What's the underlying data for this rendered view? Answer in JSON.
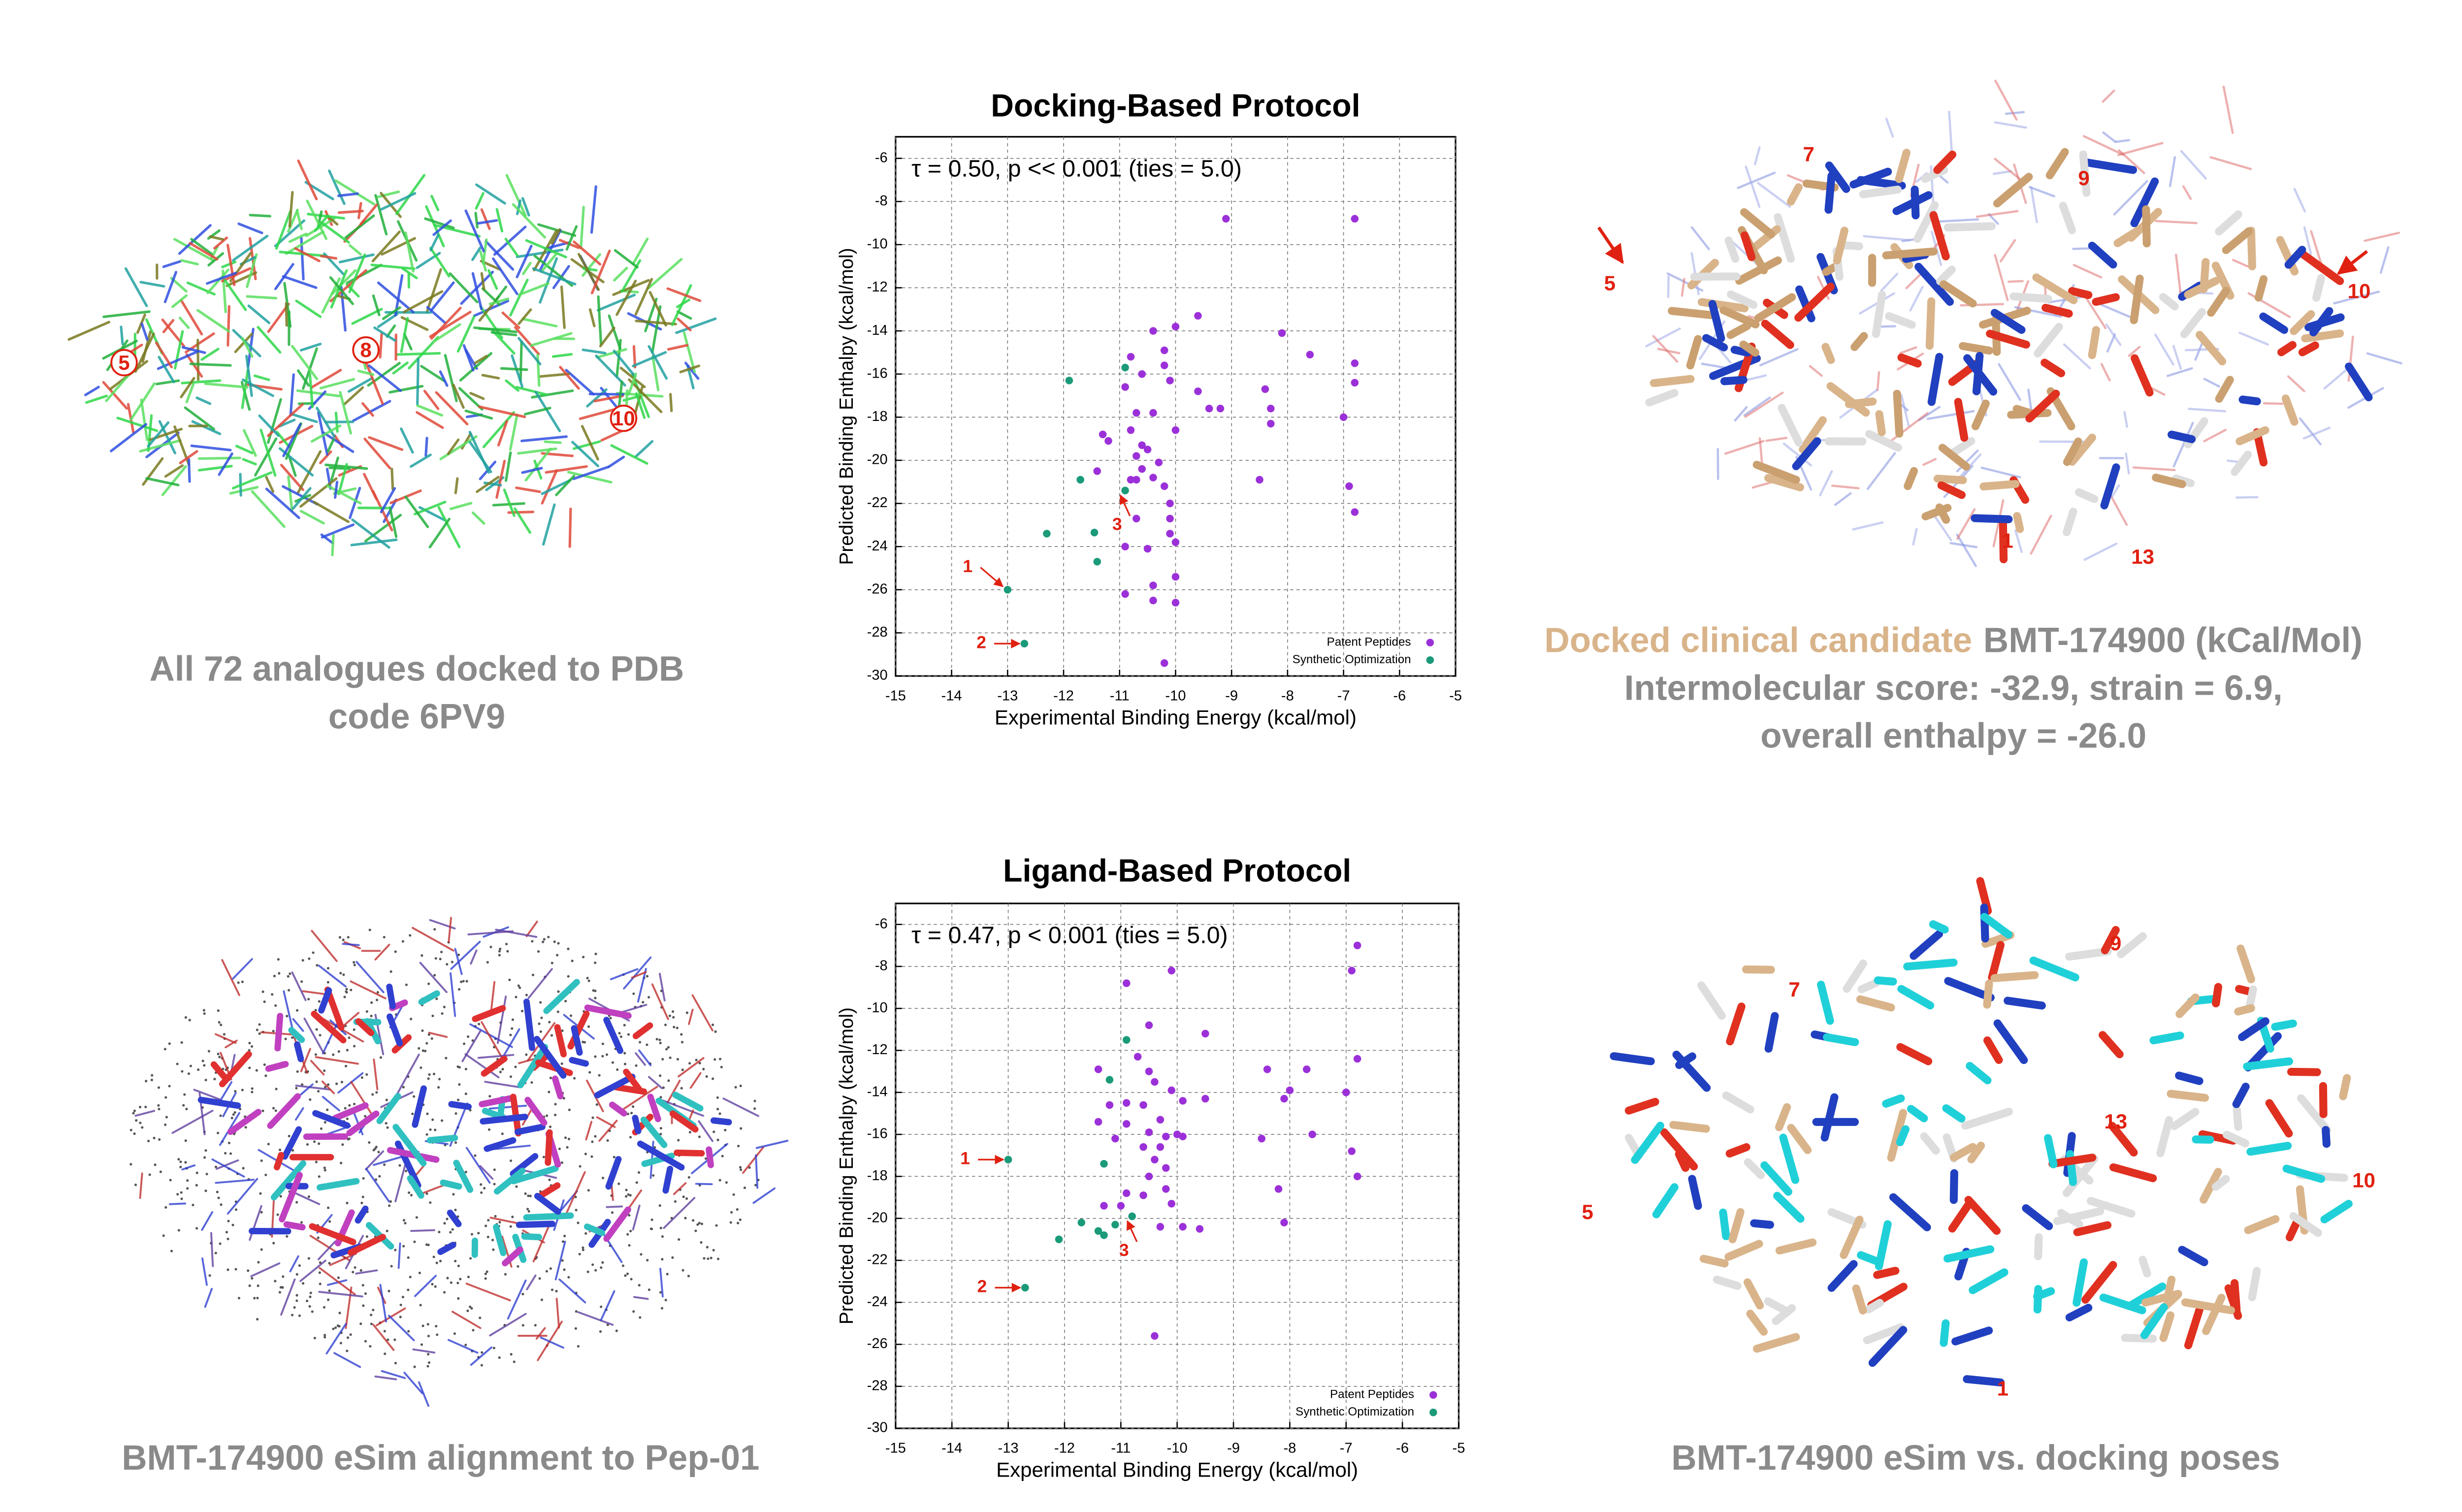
{
  "chart_data": [
    {
      "type": "scatter",
      "title": "Docking-Based Protocol",
      "stats_label": "τ = 0.50, p << 0.001 (ties = 5.0)",
      "xlabel": "Experimental Binding Energy (kcal/mol)",
      "ylabel": "Predicted Binding Enthalpy (kcal/mol)",
      "xlim": [
        -15,
        -5
      ],
      "xticks": [
        -15,
        -14,
        -13,
        -12,
        -11,
        -10,
        -9,
        -8,
        -7,
        -6,
        -5
      ],
      "ylim": [
        -30,
        -5
      ],
      "yticks": [
        -30,
        -28,
        -26,
        -24,
        -22,
        -20,
        -18,
        -16,
        -14,
        -12,
        -10,
        -8,
        -6
      ],
      "grid": true,
      "legend": "lower right",
      "series": [
        {
          "name": "Patent Peptides",
          "color": "#9b30d9",
          "x": [
            -9.1,
            -6.8,
            -10.8,
            -10.6,
            -10.9,
            -10.4,
            -10.0,
            -9.6,
            -10.2,
            -10.1,
            -9.6,
            -9.4,
            -9.2,
            -10.0,
            -10.4,
            -10.7,
            -11.3,
            -11.2,
            -10.6,
            -10.7,
            -10.5,
            -11.4,
            -10.8,
            -10.6,
            -10.3,
            -10.4,
            -10.2,
            -10.1,
            -10.1,
            -10.1,
            -10.0,
            -10.7,
            -10.9,
            -10.5,
            -10.4,
            -10.9,
            -10.4,
            -10.0,
            -10.2,
            -10.0,
            -10.7,
            -8.5,
            -8.1,
            -7.6,
            -6.8,
            -6.8,
            -8.4,
            -8.3,
            -8.3,
            -7.0,
            -6.9,
            -6.8,
            -10.2,
            -10.8
          ],
          "y": [
            -8.8,
            -8.8,
            -15.2,
            -16.0,
            -16.6,
            -14.0,
            -13.8,
            -13.3,
            -15.6,
            -16.3,
            -16.8,
            -17.6,
            -17.6,
            -18.6,
            -17.8,
            -17.8,
            -18.8,
            -19.1,
            -19.3,
            -19.8,
            -19.5,
            -20.5,
            -20.9,
            -20.4,
            -20.1,
            -20.8,
            -21.2,
            -22.0,
            -22.7,
            -23.4,
            -23.8,
            -22.7,
            -24.0,
            -24.1,
            -25.8,
            -26.2,
            -26.5,
            -26.6,
            -29.4,
            -25.4,
            -20.9,
            -20.9,
            -14.1,
            -15.1,
            -15.5,
            -16.4,
            -16.7,
            -17.6,
            -18.3,
            -18.0,
            -21.2,
            -22.4,
            -14.9,
            -18.6
          ]
        },
        {
          "name": "Synthetic Optimization",
          "color": "#1a9a78",
          "x": [
            -11.9,
            -10.9,
            -11.7,
            -12.3,
            -11.4,
            -11.45,
            -10.9,
            -13.0,
            -12.7
          ],
          "y": [
            -16.3,
            -15.7,
            -20.9,
            -23.4,
            -24.7,
            -23.35,
            -21.4,
            -26.0,
            -28.5
          ]
        }
      ],
      "annotations": [
        {
          "text": "1",
          "x": -13.0,
          "y": -26.0
        },
        {
          "text": "2",
          "x": -12.7,
          "y": -28.5
        },
        {
          "text": "3",
          "x": -10.9,
          "y": -21.4
        }
      ]
    },
    {
      "type": "scatter",
      "title": "Ligand-Based Protocol",
      "stats_label": "τ = 0.47, p < 0.001 (ties = 5.0)",
      "xlabel": "Experimental Binding Energy (kcal/mol)",
      "ylabel": "Predicted Binding Enthalpy (kcal/mol)",
      "xlim": [
        -15,
        -5
      ],
      "xticks": [
        -15,
        -14,
        -13,
        -12,
        -11,
        -10,
        -9,
        -8,
        -7,
        -6,
        -5
      ],
      "ylim": [
        -30,
        -5
      ],
      "yticks": [
        -30,
        -28,
        -26,
        -24,
        -22,
        -20,
        -18,
        -16,
        -14,
        -12,
        -10,
        -8,
        -6
      ],
      "grid": true,
      "legend": "lower right",
      "series": [
        {
          "name": "Patent Peptides",
          "color": "#9b30d9",
          "x": [
            -6.8,
            -6.9,
            -10.1,
            -10.9,
            -10.5,
            -9.5,
            -10.7,
            -10.9,
            -10.5,
            -11.4,
            -10.4,
            -10.1,
            -10.6,
            -9.9,
            -9.5,
            -10.3,
            -10.5,
            -10.2,
            -10.0,
            -10.3,
            -9.9,
            -10.9,
            -11.2,
            -11.4,
            -11.1,
            -10.6,
            -10.4,
            -10.2,
            -10.5,
            -10.2,
            -10.6,
            -10.1,
            -10.3,
            -9.9,
            -9.6,
            -10.9,
            -11.0,
            -10.4,
            -8.4,
            -7.7,
            -8.0,
            -8.1,
            -7.0,
            -6.8,
            -8.5,
            -7.6,
            -6.9,
            -6.8,
            -8.2,
            -8.1,
            -11.3
          ],
          "y": [
            -7.0,
            -8.2,
            -8.2,
            -8.8,
            -10.8,
            -11.2,
            -12.3,
            -14.5,
            -13.0,
            -12.9,
            -13.5,
            -13.9,
            -14.6,
            -14.4,
            -14.3,
            -15.3,
            -15.9,
            -16.1,
            -16.0,
            -16.6,
            -16.1,
            -15.5,
            -14.6,
            -15.4,
            -16.2,
            -16.6,
            -17.2,
            -17.6,
            -18.0,
            -18.6,
            -18.9,
            -19.3,
            -20.4,
            -20.4,
            -20.5,
            -18.8,
            -19.4,
            -25.6,
            -12.9,
            -12.9,
            -13.9,
            -14.3,
            -14.0,
            -12.4,
            -16.2,
            -16.0,
            -16.8,
            -18.0,
            -18.6,
            -20.2,
            -19.4
          ]
        },
        {
          "name": "Synthetic Optimization",
          "color": "#1a9a78",
          "x": [
            -13.0,
            -12.7,
            -10.8,
            -10.9,
            -11.2,
            -11.3,
            -11.7,
            -11.4,
            -11.3,
            -12.1,
            -11.1
          ],
          "y": [
            -17.2,
            -23.3,
            -19.9,
            -11.5,
            -13.4,
            -17.4,
            -20.2,
            -20.6,
            -20.8,
            -21.0,
            -20.3
          ]
        }
      ],
      "annotations": [
        {
          "text": "1",
          "x": -13.0,
          "y": -17.2
        },
        {
          "text": "2",
          "x": -12.7,
          "y": -23.3
        },
        {
          "text": "3",
          "x": -10.8,
          "y": -19.9
        }
      ]
    }
  ],
  "panels": {
    "docked_analogues": {
      "labels": [
        "5",
        "8",
        "10"
      ],
      "caption": [
        "All 72 analogues docked to PDB",
        "code 6PV9"
      ]
    },
    "docked_candidate": {
      "labels": [
        "7",
        "9",
        "5",
        "10",
        "13",
        "1"
      ],
      "caption_highlight": "Docked clinical candidate",
      "caption": [
        "BMT-174900 (kCal/Mol)",
        "Intermolecular score: -32.9, strain = 6.9,",
        "overall enthalpy = -26.0"
      ]
    },
    "esim_alignment": {
      "caption": [
        "BMT-174900 eSim alignment to Pep-01"
      ]
    },
    "pose_comparison": {
      "labels": [
        "9",
        "7",
        "13",
        "5",
        "10",
        "1"
      ],
      "caption": [
        "BMT-174900 eSim vs. docking poses"
      ]
    }
  }
}
